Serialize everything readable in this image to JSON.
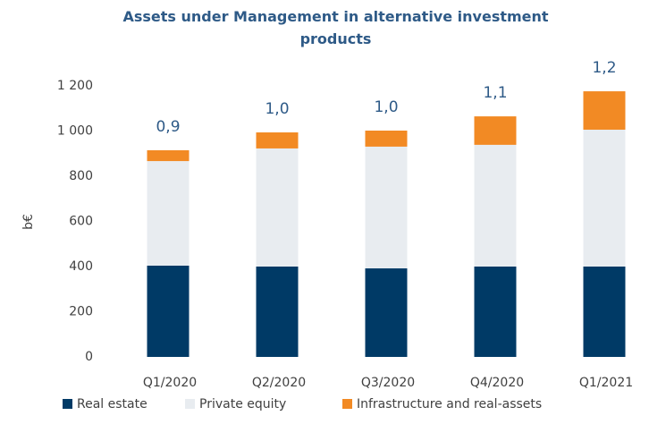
{
  "chart_data": {
    "type": "stacked_bar",
    "title": "Assets under Management in alternative investment products",
    "ylabel": "b€",
    "categories": [
      "Q1/2020",
      "Q2/2020",
      "Q3/2020",
      "Q4/2020",
      "Q1/2021"
    ],
    "series": [
      {
        "name": "Real estate",
        "color": "#003a66",
        "values": [
          404,
          400,
          392,
          400,
          400
        ]
      },
      {
        "name": "Private equity",
        "color": "#e8ecf0",
        "values": [
          463,
          523,
          539,
          539,
          606
        ]
      },
      {
        "name": "Infrastructure and real-assets",
        "color": "#f28a24",
        "values": [
          48,
          71,
          71,
          126,
          170
        ]
      }
    ],
    "annotations": [
      "0,9",
      "1,0",
      "1,0",
      "1,1",
      "1,2"
    ],
    "ylim": [
      0,
      1200
    ],
    "yticks": [
      0,
      200,
      400,
      600,
      800,
      {
        "value": 1000,
        "label": "1 000"
      },
      {
        "value": 1200,
        "label": "1 200"
      }
    ],
    "grid": false
  }
}
